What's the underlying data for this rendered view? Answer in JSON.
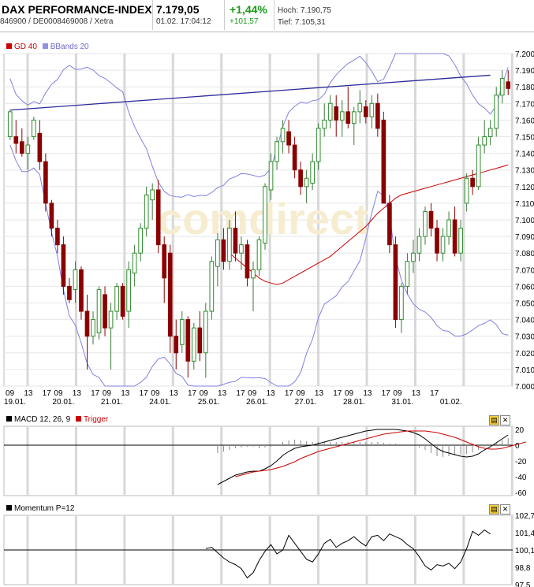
{
  "header": {
    "title": "DAX PERFORMANCE-INDEX",
    "ident": "846900 / DE0008469008 / Xetra",
    "price": "7.179,05",
    "datetime": "01.02. 17:04:12",
    "change_pct": "+1,44%",
    "change_abs": "+101,57",
    "high": "Hoch: 7.190,75",
    "low": "Tief: 7.105,31"
  },
  "main_chart": {
    "legend": [
      {
        "label": "GD 40",
        "color": "#cc0000"
      },
      {
        "label": "BBands 20",
        "color": "#8080e0"
      }
    ],
    "watermark": "comdirect",
    "y_ticks": [
      "7.200",
      "7.190",
      "7.180",
      "7.170",
      "7.160",
      "7.150",
      "7.140",
      "7.130",
      "7.120",
      "7.110",
      "7.100",
      "7.090",
      "7.080",
      "7.070",
      "7.060",
      "7.050",
      "7.040",
      "7.030",
      "7.020",
      "7.010",
      "7.000"
    ],
    "hour_ticks": [
      "09",
      "13",
      "17",
      "09",
      "13",
      "17",
      "09",
      "13",
      "17",
      "09",
      "13",
      "17",
      "09",
      "13",
      "17",
      "09",
      "13",
      "17",
      "09",
      "13",
      "17",
      "09",
      "13",
      "17",
      "09",
      "13",
      "17"
    ],
    "date_ticks": [
      "19.01.",
      "20.01.",
      "21.01.",
      "24.01.",
      "25.01.",
      "26.01.",
      "27.01.",
      "28.01.",
      "31.01.",
      "01.02."
    ]
  },
  "macd_panel": {
    "legend": "MACD 12, 26, 9",
    "trigger": "Trigger",
    "y_ticks": [
      "20",
      "0",
      "-20",
      "-40",
      "-60"
    ]
  },
  "momentum_panel": {
    "legend": "Momentum P=12",
    "y_ticks": [
      "102,7",
      "101,4",
      "100,1",
      "98,8",
      "97,5"
    ]
  },
  "chart_data": {
    "type": "candlestick",
    "ylim": [
      7000,
      7200
    ],
    "candles": [
      {
        "o": 7150,
        "h": 7166,
        "l": 7148,
        "c": 7165
      },
      {
        "o": 7150,
        "h": 7160,
        "l": 7140,
        "c": 7146
      },
      {
        "o": 7147,
        "h": 7155,
        "l": 7138,
        "c": 7140
      },
      {
        "o": 7140,
        "h": 7150,
        "l": 7130,
        "c": 7145
      },
      {
        "o": 7150,
        "h": 7162,
        "l": 7148,
        "c": 7160
      },
      {
        "o": 7152,
        "h": 7160,
        "l": 7130,
        "c": 7135
      },
      {
        "o": 7135,
        "h": 7140,
        "l": 7105,
        "c": 7110
      },
      {
        "o": 7110,
        "h": 7112,
        "l": 7090,
        "c": 7095
      },
      {
        "o": 7095,
        "h": 7100,
        "l": 7080,
        "c": 7085
      },
      {
        "o": 7085,
        "h": 7090,
        "l": 7055,
        "c": 7060
      },
      {
        "o": 7060,
        "h": 7065,
        "l": 7050,
        "c": 7052
      },
      {
        "o": 7058,
        "h": 7075,
        "l": 7050,
        "c": 7070
      },
      {
        "o": 7070,
        "h": 7072,
        "l": 7040,
        "c": 7045
      },
      {
        "o": 7045,
        "h": 7055,
        "l": 7010,
        "c": 7030
      },
      {
        "o": 7030,
        "h": 7045,
        "l": 7025,
        "c": 7040
      },
      {
        "o": 7032,
        "h": 7060,
        "l": 7028,
        "c": 7058
      },
      {
        "o": 7055,
        "h": 7060,
        "l": 7030,
        "c": 7035
      },
      {
        "o": 7035,
        "h": 7050,
        "l": 7010,
        "c": 7045
      },
      {
        "o": 7045,
        "h": 7062,
        "l": 7040,
        "c": 7060
      },
      {
        "o": 7060,
        "h": 7062,
        "l": 7040,
        "c": 7042
      },
      {
        "o": 7045,
        "h": 7075,
        "l": 7035,
        "c": 7070
      },
      {
        "o": 7068,
        "h": 7085,
        "l": 7060,
        "c": 7080
      },
      {
        "o": 7080,
        "h": 7098,
        "l": 7075,
        "c": 7095
      },
      {
        "o": 7095,
        "h": 7120,
        "l": 7090,
        "c": 7115
      },
      {
        "o": 7112,
        "h": 7122,
        "l": 7100,
        "c": 7118
      },
      {
        "o": 7118,
        "h": 7124,
        "l": 7080,
        "c": 7085
      },
      {
        "o": 7085,
        "h": 7090,
        "l": 7050,
        "c": 7065
      },
      {
        "o": 7080,
        "h": 7085,
        "l": 7020,
        "c": 7030
      },
      {
        "o": 7030,
        "h": 7040,
        "l": 7010,
        "c": 7020
      },
      {
        "o": 7025,
        "h": 7045,
        "l": 7020,
        "c": 7040
      },
      {
        "o": 7040,
        "h": 7042,
        "l": 7005,
        "c": 7015
      },
      {
        "o": 7015,
        "h": 7038,
        "l": 7010,
        "c": 7035
      },
      {
        "o": 7035,
        "h": 7045,
        "l": 7015,
        "c": 7020
      },
      {
        "o": 7020,
        "h": 7050,
        "l": 7005,
        "c": 7045
      },
      {
        "o": 7045,
        "h": 7078,
        "l": 7040,
        "c": 7075
      },
      {
        "o": 7072,
        "h": 7092,
        "l": 7060,
        "c": 7088
      },
      {
        "o": 7088,
        "h": 7095,
        "l": 7070,
        "c": 7075
      },
      {
        "o": 7075,
        "h": 7100,
        "l": 7070,
        "c": 7095
      },
      {
        "o": 7095,
        "h": 7105,
        "l": 7075,
        "c": 7080
      },
      {
        "o": 7080,
        "h": 7090,
        "l": 7070,
        "c": 7085
      },
      {
        "o": 7085,
        "h": 7088,
        "l": 7060,
        "c": 7065
      },
      {
        "o": 7065,
        "h": 7075,
        "l": 7045,
        "c": 7070
      },
      {
        "o": 7070,
        "h": 7090,
        "l": 7066,
        "c": 7088
      },
      {
        "o": 7086,
        "h": 7122,
        "l": 7082,
        "c": 7120
      },
      {
        "o": 7118,
        "h": 7140,
        "l": 7112,
        "c": 7135
      },
      {
        "o": 7135,
        "h": 7150,
        "l": 7130,
        "c": 7147
      },
      {
        "o": 7147,
        "h": 7160,
        "l": 7140,
        "c": 7155
      },
      {
        "o": 7153,
        "h": 7160,
        "l": 7140,
        "c": 7145
      },
      {
        "o": 7145,
        "h": 7150,
        "l": 7125,
        "c": 7130
      },
      {
        "o": 7130,
        "h": 7135,
        "l": 7115,
        "c": 7120
      },
      {
        "o": 7120,
        "h": 7130,
        "l": 7110,
        "c": 7125
      },
      {
        "o": 7122,
        "h": 7140,
        "l": 7118,
        "c": 7135
      },
      {
        "o": 7135,
        "h": 7158,
        "l": 7130,
        "c": 7155
      },
      {
        "o": 7155,
        "h": 7170,
        "l": 7150,
        "c": 7160
      },
      {
        "o": 7160,
        "h": 7175,
        "l": 7155,
        "c": 7170
      },
      {
        "o": 7168,
        "h": 7175,
        "l": 7150,
        "c": 7160
      },
      {
        "o": 7160,
        "h": 7172,
        "l": 7150,
        "c": 7165
      },
      {
        "o": 7165,
        "h": 7180,
        "l": 7155,
        "c": 7158
      },
      {
        "o": 7158,
        "h": 7168,
        "l": 7145,
        "c": 7165
      },
      {
        "o": 7165,
        "h": 7178,
        "l": 7158,
        "c": 7170
      },
      {
        "o": 7168,
        "h": 7172,
        "l": 7158,
        "c": 7162
      },
      {
        "o": 7162,
        "h": 7175,
        "l": 7155,
        "c": 7170
      },
      {
        "o": 7170,
        "h": 7176,
        "l": 7150,
        "c": 7155
      },
      {
        "o": 7160,
        "h": 7165,
        "l": 7110,
        "c": 7110
      },
      {
        "o": 7110,
        "h": 7115,
        "l": 7080,
        "c": 7085
      },
      {
        "o": 7085,
        "h": 7090,
        "l": 7035,
        "c": 7040
      },
      {
        "o": 7040,
        "h": 7062,
        "l": 7032,
        "c": 7060
      },
      {
        "o": 7060,
        "h": 7080,
        "l": 7055,
        "c": 7075
      },
      {
        "o": 7075,
        "h": 7088,
        "l": 7068,
        "c": 7080
      },
      {
        "o": 7080,
        "h": 7095,
        "l": 7075,
        "c": 7090
      },
      {
        "o": 7090,
        "h": 7108,
        "l": 7085,
        "c": 7105
      },
      {
        "o": 7105,
        "h": 7110,
        "l": 7090,
        "c": 7095
      },
      {
        "o": 7095,
        "h": 7100,
        "l": 7075,
        "c": 7080
      },
      {
        "o": 7080,
        "h": 7095,
        "l": 7075,
        "c": 7090
      },
      {
        "o": 7090,
        "h": 7105,
        "l": 7085,
        "c": 7100
      },
      {
        "o": 7100,
        "h": 7108,
        "l": 7078,
        "c": 7080
      },
      {
        "o": 7080,
        "h": 7100,
        "l": 7075,
        "c": 7095
      },
      {
        "o": 7110,
        "h": 7128,
        "l": 7105,
        "c": 7125
      },
      {
        "o": 7125,
        "h": 7130,
        "l": 7115,
        "c": 7120
      },
      {
        "o": 7120,
        "h": 7150,
        "l": 7118,
        "c": 7145
      },
      {
        "o": 7145,
        "h": 7160,
        "l": 7140,
        "c": 7150
      },
      {
        "o": 7150,
        "h": 7160,
        "l": 7145,
        "c": 7155
      },
      {
        "o": 7155,
        "h": 7180,
        "l": 7150,
        "c": 7175
      },
      {
        "o": 7175,
        "h": 7190,
        "l": 7170,
        "c": 7185
      },
      {
        "o": 7183,
        "h": 7190,
        "l": 7175,
        "c": 7179
      }
    ],
    "gd40": [
      7080,
      7077,
      7074,
      7071,
      7068,
      7065,
      7063,
      7062,
      7061,
      7062,
      7064,
      7066,
      7068,
      7070,
      7072,
      7074,
      7076,
      7078,
      7081,
      7084,
      7087,
      7090,
      7093,
      7096,
      7100,
      7104,
      7107,
      7110,
      7113,
      7115,
      7116,
      7117,
      7118,
      7119,
      7120,
      7121,
      7122,
      7123,
      7124,
      7125,
      7126,
      7127,
      7128,
      7129,
      7130,
      7131,
      7132,
      7133
    ],
    "trendline": [
      [
        0,
        7166
      ],
      [
        81,
        7187
      ]
    ],
    "macd": [
      -50,
      -46,
      -42,
      -38,
      -36,
      -34,
      -33,
      -33,
      -30,
      -26,
      -20,
      -13,
      -8,
      -4,
      -2,
      -1,
      0,
      2,
      4,
      6,
      8,
      10,
      12,
      14,
      16,
      18,
      19,
      20,
      20,
      20,
      20,
      19,
      18,
      16,
      13,
      8,
      2,
      -4,
      -8,
      -10,
      -12,
      -14,
      -15,
      -14,
      -11,
      -6,
      -2,
      3,
      8,
      13
    ],
    "trigger": [
      -40,
      -38,
      -36,
      -34,
      -33,
      -32,
      -31,
      -29,
      -27,
      -24,
      -21,
      -17,
      -14,
      -11,
      -8,
      -6,
      -4,
      -2,
      0,
      2,
      4,
      6,
      8,
      10,
      12,
      14,
      15,
      16,
      17,
      18,
      18,
      18,
      18,
      17,
      16,
      14,
      12,
      10,
      7,
      4,
      1,
      -2,
      -4,
      -5,
      -5,
      -4,
      -2,
      0,
      2,
      4
    ],
    "momentum": [
      100.2,
      100.3,
      99.9,
      99.5,
      99.2,
      99.0,
      98.7,
      98.0,
      98.4,
      99.3,
      100.0,
      100.5,
      99.8,
      100.1,
      101.2,
      100.6,
      100.0,
      99.4,
      99.2,
      99.8,
      100.6,
      100.9,
      100.3,
      100.6,
      100.8,
      101.1,
      100.7,
      100.4,
      101.1,
      101.2,
      100.8,
      101.3,
      101.1,
      100.9,
      100.5,
      100.2,
      99.6,
      98.9,
      98.6,
      99.0,
      98.9,
      99.1,
      98.7,
      99.2,
      100.2,
      101.5,
      101.2,
      101.6,
      101.3
    ]
  }
}
